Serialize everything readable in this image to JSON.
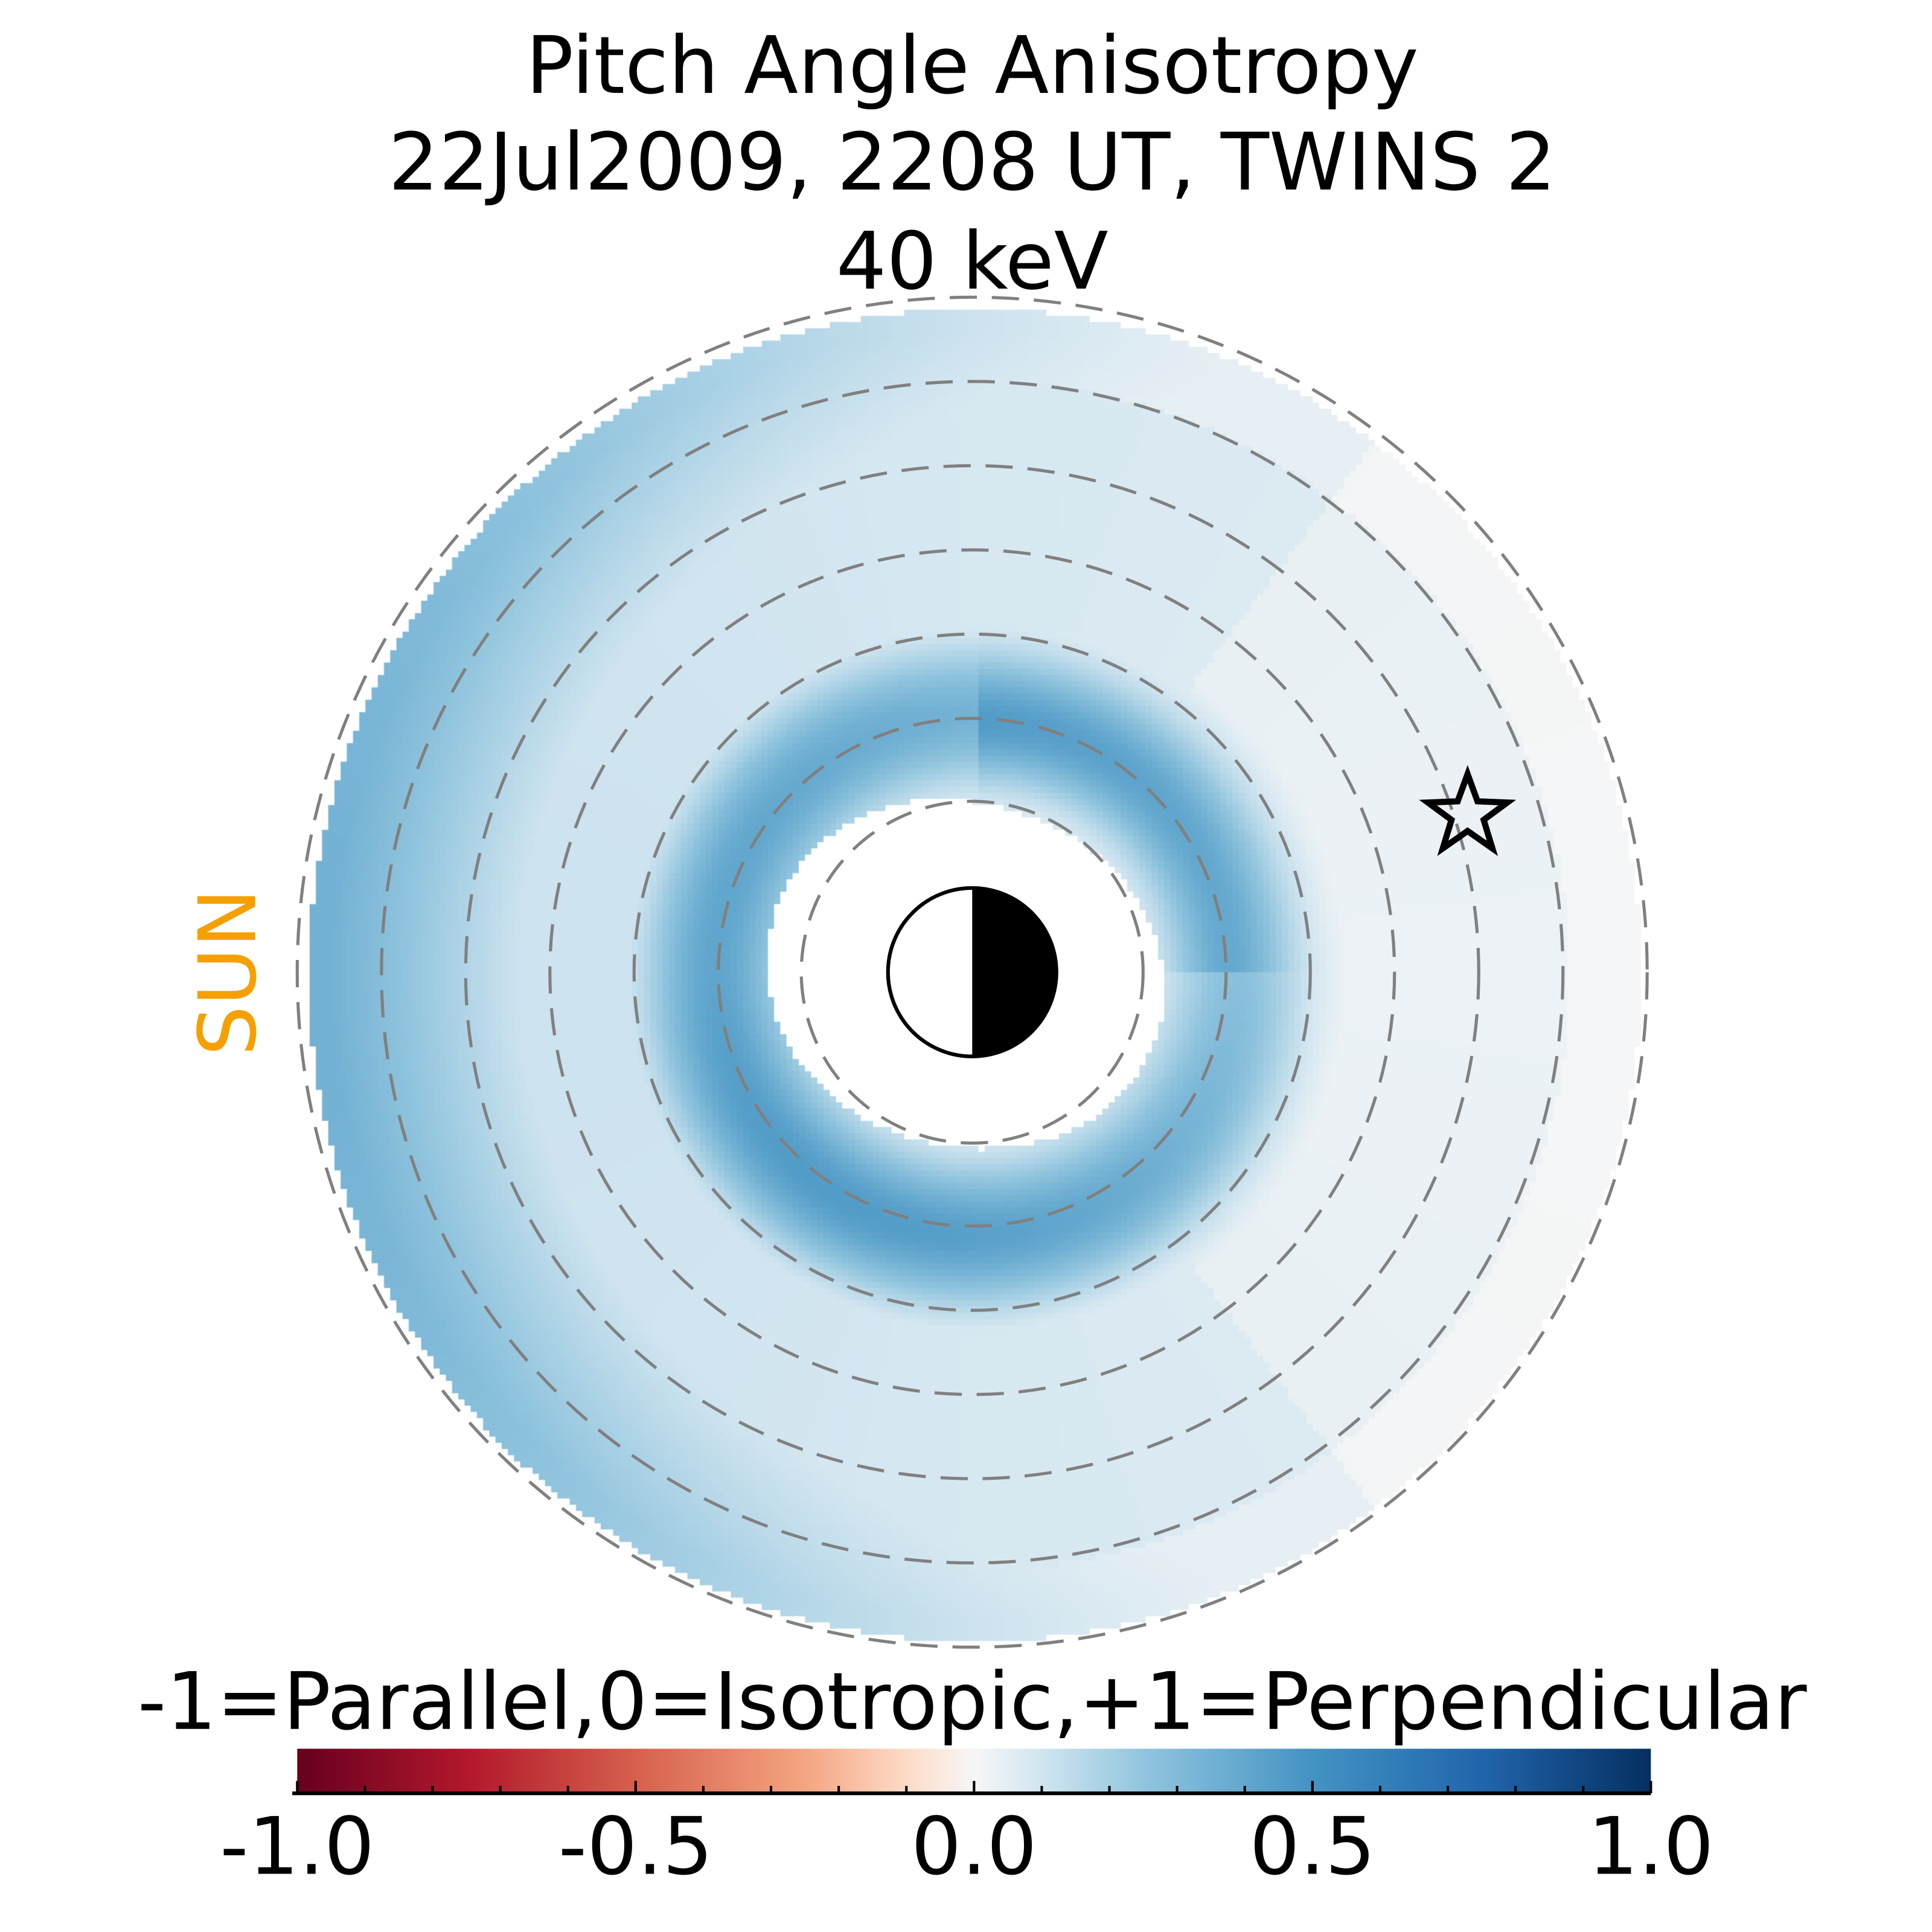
{
  "title_lines": [
    "Pitch Angle Anisotropy",
    "22Jul2009, 2208 UT,  TWINS 2",
    "40 keV"
  ],
  "sun_label": "SUN",
  "chart_data": {
    "type": "heatmap",
    "title": "Pitch Angle Anisotropy 22Jul2009, 2208 UT, TWINS 2 40 keV",
    "colorbar": {
      "label": "-1=Parallel,0=Isotropic,+1=Perpendicular",
      "range": [
        -1.0,
        1.0
      ],
      "ticks": [
        "-1.0",
        "-0.5",
        "0.0",
        "0.5",
        "1.0"
      ],
      "colormap": "RdBu"
    },
    "field_summary": {
      "inner_ring_peak": 0.5,
      "dayside_outer": 0.35,
      "nightside_outer": -0.02
    },
    "markers": [
      "earth-day-night",
      "star"
    ],
    "sun_direction": "left"
  },
  "colors": {
    "sun": "#f5a000",
    "ring": "#808080"
  }
}
